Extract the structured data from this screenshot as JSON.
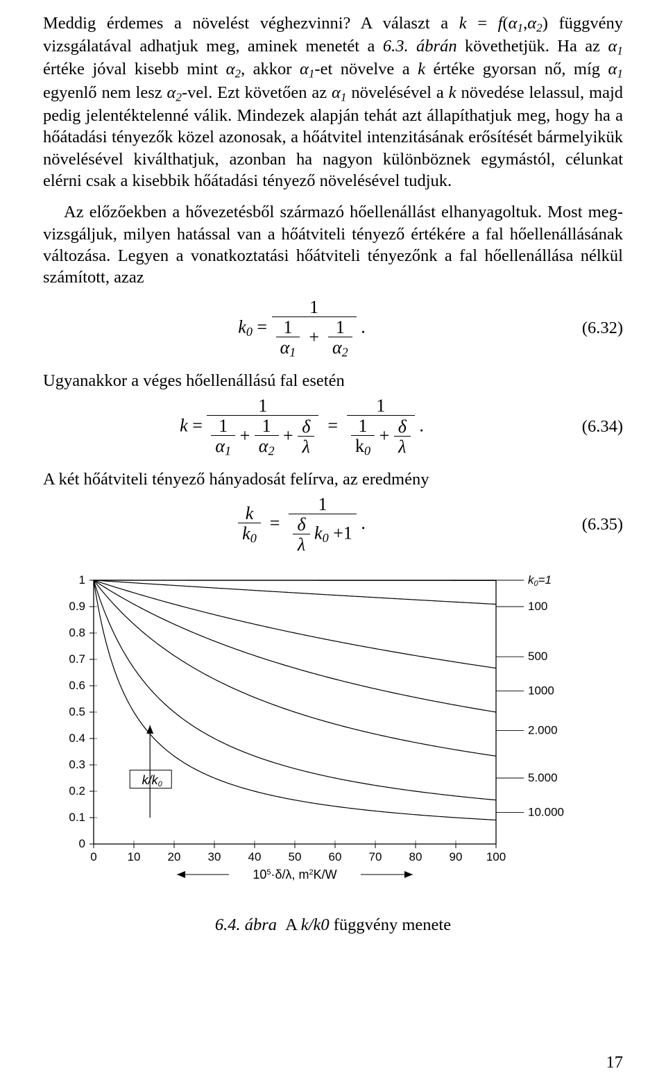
{
  "para1_parts": {
    "a": "Meddig érdemes a növelést véghezvinni? A választ a ",
    "b_html": "<span class='it'>k</span> = <span class='it'>f</span>(<span class='it'>α</span><span class='sub'>1</span>,<span class='it'>α</span><span class='sub'>2</span>)",
    "c": " függvény vizsgálatával adhatjuk meg, aminek menetét a ",
    "d": "6.3. ábrán",
    "e": " követhetjük. Ha az ",
    "f_html": "<span class='it'>α</span><span class='sub'>1</span>",
    "g": " értéke jóval kisebb mint ",
    "h_html": "<span class='it'>α</span><span class='sub'>2</span>",
    "i": ", akkor ",
    "j_html": "<span class='it'>α</span><span class='sub'>1</span>",
    "k": "-et növelve a ",
    "l_html": "<span class='it'>k</span>",
    "m": " értéke gyorsan nő, míg ",
    "n_html": "<span class='it'>α</span><span class='sub'>1</span>",
    "o": " egyenlő nem lesz ",
    "p_html": "<span class='it'>α</span><span class='sub'>2</span>",
    "q": "-vel. Ezt követően az ",
    "r_html": "<span class='it'>α</span><span class='sub'>1</span>",
    "s": " növelésével a ",
    "t_html": "<span class='it'>k</span>",
    "u": " növedése lelassul, majd pedig jelentéktelenné válik. Mindezek alapján tehát azt állapíthatjuk meg, hogy ha a hőátadási tényezők közel azonosak, a hőátvitel intenzitásának erősítését bármelyikük növelésével kiválthatjuk, azonban ha nagyon különböznek egymástól, célunkat elérni csak a kisebbik hőátadási tényező növelésével tudjuk."
  },
  "para2": "Az előzőekben a hővezetésből származó hőellenállást elhanyagoltuk. Most meg­vizsgáljuk, milyen hatással van a hőátviteli tényező értékére a fal hőellenállásá­nak változása. Legyen a vonatkoztatási hőátviteli tényezőnk a fal hőellenállása nélkül számított, azaz",
  "eq1": {
    "num": "(6.32)",
    "lhs": "k",
    "lsub": "0"
  },
  "line_after_eq1": "Ugyanakkor a véges hőellenállású fal esetén",
  "eq2": {
    "num": "(6.34)"
  },
  "line_after_eq2": "A két hőátviteli tényező hányadosát felírva, az eredmény",
  "eq3": {
    "num": "(6.35)"
  },
  "chart": {
    "type": "line",
    "xlim": [
      0,
      100
    ],
    "ylim": [
      0,
      1
    ],
    "xticks": [
      0,
      10,
      20,
      30,
      40,
      50,
      60,
      70,
      80,
      90,
      100
    ],
    "yticks": [
      0,
      0.1,
      0.2,
      0.3,
      0.4,
      0.5,
      0.6,
      0.7,
      0.8,
      0.9,
      1
    ],
    "xlabel_html": "10<tspan baseline-shift='6' font-size='11'>5</tspan>·δ/λ, m<tspan baseline-shift='6' font-size='11'>2</tspan>K/W",
    "ylabel_html": "k/k<tspan font-style='italic' baseline-shift='-3' font-size='11'>0</tspan>",
    "k0_label": "k<tspan font-style='italic' baseline-shift='-3' font-size='11'>0</tspan>=",
    "tick_fontsize": 17,
    "label_fontsize": 18,
    "series_label_fontsize": 17,
    "curve_color": "#000000",
    "grid_color": "#000000",
    "background": "#ffffff",
    "line_width": 1.2,
    "curves": [
      {
        "k0": 1,
        "label": "1",
        "label_y": 1.0,
        "label_bold": true
      },
      {
        "k0": 100,
        "label": "100",
        "label_y": 0.9
      },
      {
        "k0": 500,
        "label": "500",
        "label_y": 0.71
      },
      {
        "k0": 1000,
        "label": "1000",
        "label_y": 0.58
      },
      {
        "k0": 2000,
        "label": "2.000",
        "label_y": 0.43
      },
      {
        "k0": 5000,
        "label": "5.000",
        "label_y": 0.25
      },
      {
        "k0": 10000,
        "label": "10.000",
        "label_y": 0.12
      }
    ],
    "arrow": {
      "x": 14,
      "y_from": 0.1,
      "y_to": 0.45
    }
  },
  "caption_prefix": "6.4. ábra",
  "caption_rest_html": "A <span class='it'>k/k0</span> függvény menete",
  "page_number": "17"
}
